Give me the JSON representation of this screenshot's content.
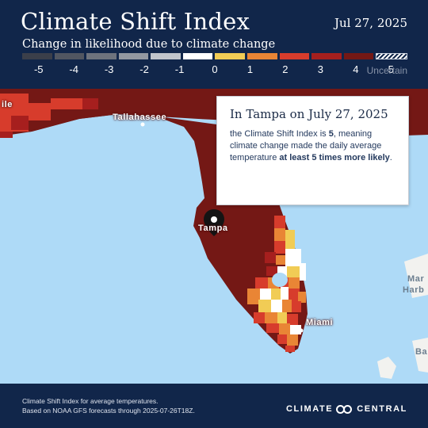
{
  "header": {
    "title": "Climate Shift Index",
    "date": "Jul 27, 2025",
    "subtitle": "Change in likelihood due to climate change"
  },
  "scale": {
    "labels": [
      "-5",
      "-4",
      "-3",
      "-2",
      "-1",
      "0",
      "1",
      "2",
      "3",
      "4",
      "5",
      "Uncertain"
    ],
    "colors": [
      "#3b3f4a",
      "#515661",
      "#6e737d",
      "#9398a1",
      "#c1c5cb",
      "#ffffff",
      "#f1cc55",
      "#e98535",
      "#d73c2c",
      "#a61f1e",
      "#741815"
    ]
  },
  "map": {
    "cities": {
      "tallahassee": "Tallahassee",
      "tampa": "Tampa",
      "miami": "Miami",
      "edge_left": "ile",
      "edge_right_1": "Mar",
      "edge_right_2": "Harb",
      "edge_right_3": "Ba"
    },
    "colors": {
      "ocean": "#aedaf7",
      "land_outside": "#f2f2ef",
      "csi5": "#741815",
      "csi4": "#a61f1e",
      "csi3": "#d73c2c",
      "csi2": "#e98535",
      "csi1": "#f1cc55",
      "csi0": "#ffffff"
    }
  },
  "info": {
    "title": "In Tampa on July 27, 2025",
    "text_pre": "the Climate Shift Index is ",
    "value": "5",
    "text_mid": ", meaning climate change made the daily average temperature ",
    "text_bold": "at least 5 times more likely",
    "text_end": "."
  },
  "footer": {
    "note_line1": "Climate Shift Index for average temperatures.",
    "note_line2": "Based on NOAA GFS forecasts through 2025-07-26T18Z.",
    "brand_left": "CLIMATE",
    "brand_right": "CENTRAL"
  }
}
